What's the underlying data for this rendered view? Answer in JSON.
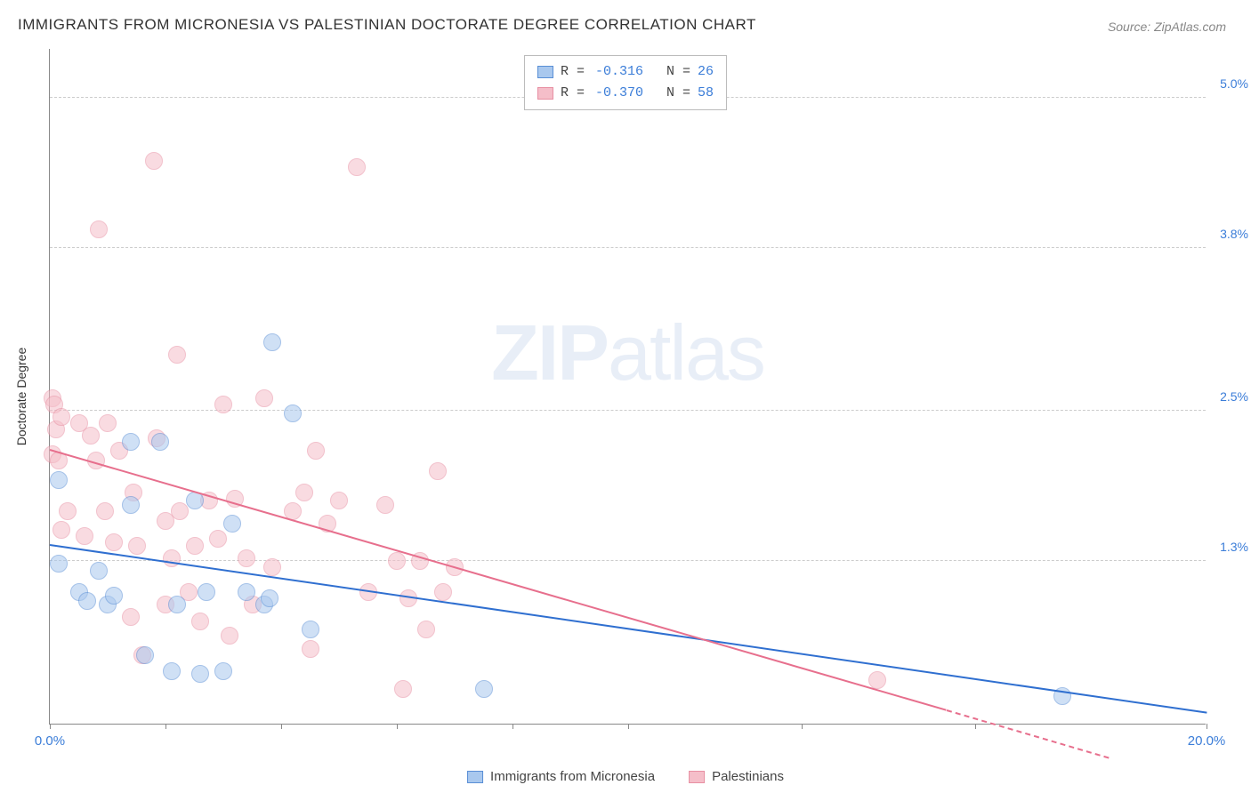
{
  "title": "IMMIGRANTS FROM MICRONESIA VS PALESTINIAN DOCTORATE DEGREE CORRELATION CHART",
  "source_label": "Source:",
  "source_name": "ZipAtlas.com",
  "watermark_a": "ZIP",
  "watermark_b": "atlas",
  "chart": {
    "type": "scatter",
    "background_color": "#ffffff",
    "grid_color": "#cccccc",
    "axis_color": "#888888",
    "xlim": [
      0.0,
      20.0
    ],
    "ylim": [
      0.0,
      5.4
    ],
    "x_ticks": [
      0.0,
      2.0,
      4.0,
      6.0,
      8.0,
      10.0,
      13.0,
      16.0,
      20.0
    ],
    "y_grid": [
      1.3,
      2.5,
      3.8,
      5.0
    ],
    "x_tick_labels": {
      "0": "0.0%",
      "20": "20.0%"
    },
    "y_tick_labels": [
      "1.3%",
      "2.5%",
      "3.8%",
      "5.0%"
    ],
    "ylabel": "Doctorate Degree",
    "label_fontsize": 14,
    "tick_fontsize": 14,
    "tick_color": "#3b7dd8",
    "marker_radius": 10,
    "marker_opacity": 0.55,
    "line_width": 2
  },
  "series": [
    {
      "name": "Immigrants from Micronesia",
      "fill_color": "#a9c8ee",
      "stroke_color": "#5a8fd6",
      "trend_color": "#2f6fd0",
      "r_label": "R =",
      "r_value": "-0.316",
      "n_label": "N =",
      "n_value": "26",
      "trend": {
        "x1": 0.0,
        "y1": 1.42,
        "x2": 20.0,
        "y2": 0.08
      },
      "points": [
        [
          0.15,
          1.95
        ],
        [
          0.15,
          1.28
        ],
        [
          0.5,
          1.05
        ],
        [
          0.65,
          0.98
        ],
        [
          0.85,
          1.22
        ],
        [
          1.0,
          0.95
        ],
        [
          1.1,
          1.02
        ],
        [
          1.4,
          2.25
        ],
        [
          1.4,
          1.75
        ],
        [
          1.65,
          0.55
        ],
        [
          1.9,
          2.25
        ],
        [
          2.1,
          0.42
        ],
        [
          2.2,
          0.95
        ],
        [
          2.5,
          1.78
        ],
        [
          2.6,
          0.4
        ],
        [
          2.7,
          1.05
        ],
        [
          3.0,
          0.42
        ],
        [
          3.15,
          1.6
        ],
        [
          3.4,
          1.05
        ],
        [
          3.7,
          0.95
        ],
        [
          3.8,
          1.0
        ],
        [
          3.85,
          3.05
        ],
        [
          4.2,
          2.48
        ],
        [
          4.5,
          0.75
        ],
        [
          7.5,
          0.28
        ],
        [
          17.5,
          0.22
        ]
      ]
    },
    {
      "name": "Palestinians",
      "fill_color": "#f5bec9",
      "stroke_color": "#e890a3",
      "trend_color": "#e76f8d",
      "r_label": "R =",
      "r_value": "-0.370",
      "n_label": "N =",
      "n_value": "58",
      "trend": {
        "x1": 0.0,
        "y1": 2.18,
        "x2": 15.5,
        "y2": 0.1
      },
      "trend_dash": {
        "x1": 15.5,
        "y1": 0.1,
        "x2": 18.3,
        "y2": -0.28
      },
      "points": [
        [
          0.05,
          2.6
        ],
        [
          0.05,
          2.15
        ],
        [
          0.08,
          2.55
        ],
        [
          0.1,
          2.35
        ],
        [
          0.15,
          2.1
        ],
        [
          0.2,
          2.45
        ],
        [
          0.2,
          1.55
        ],
        [
          0.3,
          1.7
        ],
        [
          0.5,
          2.4
        ],
        [
          0.6,
          1.5
        ],
        [
          0.7,
          2.3
        ],
        [
          0.8,
          2.1
        ],
        [
          0.85,
          3.95
        ],
        [
          0.95,
          1.7
        ],
        [
          1.0,
          2.4
        ],
        [
          1.1,
          1.45
        ],
        [
          1.2,
          2.18
        ],
        [
          1.4,
          0.85
        ],
        [
          1.45,
          1.85
        ],
        [
          1.5,
          1.42
        ],
        [
          1.6,
          0.55
        ],
        [
          1.8,
          4.5
        ],
        [
          1.85,
          2.28
        ],
        [
          2.0,
          0.95
        ],
        [
          2.0,
          1.62
        ],
        [
          2.1,
          1.32
        ],
        [
          2.2,
          2.95
        ],
        [
          2.25,
          1.7
        ],
        [
          2.4,
          1.05
        ],
        [
          2.5,
          1.42
        ],
        [
          2.6,
          0.82
        ],
        [
          2.75,
          1.78
        ],
        [
          2.9,
          1.48
        ],
        [
          3.0,
          2.55
        ],
        [
          3.1,
          0.7
        ],
        [
          3.2,
          1.8
        ],
        [
          3.4,
          1.32
        ],
        [
          3.5,
          0.95
        ],
        [
          3.7,
          2.6
        ],
        [
          3.85,
          1.25
        ],
        [
          4.2,
          1.7
        ],
        [
          4.4,
          1.85
        ],
        [
          4.5,
          0.6
        ],
        [
          4.6,
          2.18
        ],
        [
          4.8,
          1.6
        ],
        [
          5.0,
          1.78
        ],
        [
          5.3,
          4.45
        ],
        [
          5.5,
          1.05
        ],
        [
          5.8,
          1.75
        ],
        [
          6.0,
          1.3
        ],
        [
          6.1,
          0.28
        ],
        [
          6.2,
          1.0
        ],
        [
          6.4,
          1.3
        ],
        [
          6.5,
          0.75
        ],
        [
          6.7,
          2.02
        ],
        [
          6.8,
          1.05
        ],
        [
          7.0,
          1.25
        ],
        [
          14.3,
          0.35
        ]
      ]
    }
  ]
}
